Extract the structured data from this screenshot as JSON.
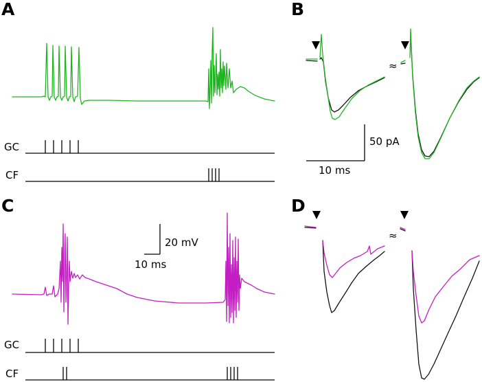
{
  "panels": {
    "A": {
      "label": "A",
      "trace_color": "#1fb41f"
    },
    "B": {
      "label": "B",
      "trace_color": "#1fb41f",
      "control_color": "#111111"
    },
    "C": {
      "label": "C",
      "trace_color": "#c21ec2"
    },
    "D": {
      "label": "D",
      "trace_color": "#c21ec2",
      "control_color": "#111111"
    }
  },
  "rows": {
    "gc": "GC",
    "cf": "CF"
  },
  "scalebars": {
    "current_amp": "50 pA",
    "current_time": "10 ms",
    "voltage_amp": "20 mV",
    "voltage_time": "10 ms"
  },
  "markers": {
    "break_symbol": "≈",
    "stim_arrow_icon": "arrow-down-icon"
  }
}
